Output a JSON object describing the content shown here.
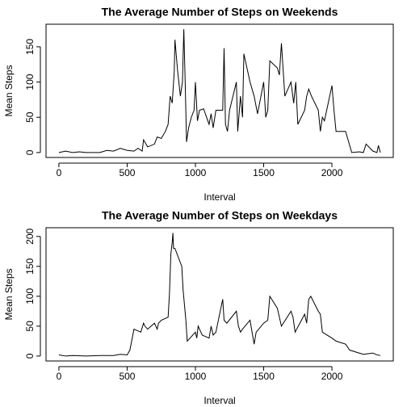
{
  "chart_data": [
    {
      "type": "line",
      "title": "The Average Number of Steps on Weekends",
      "xlabel": "Interval",
      "ylabel": "Mean Steps",
      "color": "#000000",
      "x": [
        0,
        50,
        100,
        150,
        200,
        250,
        300,
        350,
        400,
        450,
        500,
        550,
        580,
        610,
        620,
        650,
        700,
        720,
        750,
        780,
        800,
        815,
        830,
        845,
        850,
        870,
        890,
        905,
        915,
        925,
        935,
        950,
        970,
        990,
        1000,
        1015,
        1030,
        1060,
        1100,
        1115,
        1130,
        1150,
        1200,
        1210,
        1220,
        1235,
        1250,
        1300,
        1310,
        1330,
        1345,
        1355,
        1400,
        1430,
        1455,
        1500,
        1515,
        1530,
        1545,
        1600,
        1615,
        1630,
        1640,
        1655,
        1700,
        1720,
        1735,
        1750,
        1800,
        1815,
        1830,
        1850,
        1900,
        1915,
        1930,
        1945,
        2000,
        2015,
        2030,
        2100,
        2130,
        2145,
        2200,
        2230,
        2250,
        2300,
        2330,
        2340,
        2355
      ],
      "values": [
        0,
        2,
        0,
        1,
        0,
        0,
        0,
        3,
        2,
        6,
        3,
        2,
        6,
        2,
        18,
        8,
        12,
        22,
        20,
        30,
        40,
        80,
        70,
        115,
        160,
        115,
        80,
        100,
        175,
        100,
        15,
        35,
        50,
        60,
        100,
        45,
        60,
        62,
        40,
        55,
        35,
        60,
        60,
        148,
        40,
        30,
        60,
        100,
        30,
        80,
        50,
        140,
        100,
        80,
        55,
        100,
        50,
        60,
        130,
        120,
        110,
        155,
        125,
        80,
        100,
        70,
        100,
        40,
        60,
        80,
        90,
        80,
        60,
        30,
        50,
        45,
        95,
        60,
        30,
        30,
        10,
        0,
        1,
        0,
        12,
        2,
        0,
        10,
        0
      ],
      "xlim": [
        -94.2,
        2449.2
      ],
      "ylim": [
        -7,
        182
      ],
      "xticks": [
        0,
        500,
        1000,
        1500,
        2000
      ],
      "yticks": [
        0,
        50,
        100,
        150
      ]
    },
    {
      "type": "line",
      "title": "The Average Number of Steps on Weekdays",
      "xlabel": "Interval",
      "ylabel": "Mean Steps",
      "color": "#000000",
      "x": [
        0,
        50,
        100,
        200,
        300,
        400,
        450,
        500,
        520,
        550,
        600,
        620,
        630,
        650,
        700,
        720,
        730,
        750,
        800,
        810,
        820,
        830,
        835,
        840,
        850,
        900,
        910,
        930,
        940,
        1000,
        1010,
        1020,
        1040,
        1050,
        1100,
        1115,
        1130,
        1150,
        1200,
        1210,
        1230,
        1300,
        1315,
        1330,
        1345,
        1400,
        1430,
        1445,
        1500,
        1530,
        1545,
        1600,
        1630,
        1700,
        1715,
        1730,
        1800,
        1815,
        1830,
        1845,
        1900,
        1915,
        1930,
        2000,
        2030,
        2100,
        2130,
        2200,
        2230,
        2300,
        2330,
        2355
      ],
      "values": [
        2,
        0,
        1,
        0,
        1,
        1,
        3,
        2,
        10,
        45,
        40,
        55,
        50,
        45,
        55,
        45,
        55,
        60,
        65,
        105,
        170,
        190,
        206,
        180,
        180,
        150,
        110,
        60,
        25,
        40,
        30,
        50,
        40,
        35,
        30,
        50,
        35,
        40,
        95,
        60,
        55,
        75,
        50,
        40,
        45,
        60,
        20,
        40,
        55,
        60,
        100,
        80,
        50,
        75,
        65,
        40,
        70,
        55,
        95,
        100,
        75,
        70,
        40,
        30,
        25,
        20,
        10,
        5,
        3,
        5,
        2,
        1
      ],
      "xlim": [
        -94.2,
        2449.2
      ],
      "ylim": [
        -8.2,
        214.6
      ],
      "xticks": [
        0,
        500,
        1000,
        1500,
        2000
      ],
      "yticks": [
        0,
        50,
        100,
        150,
        200
      ]
    }
  ]
}
